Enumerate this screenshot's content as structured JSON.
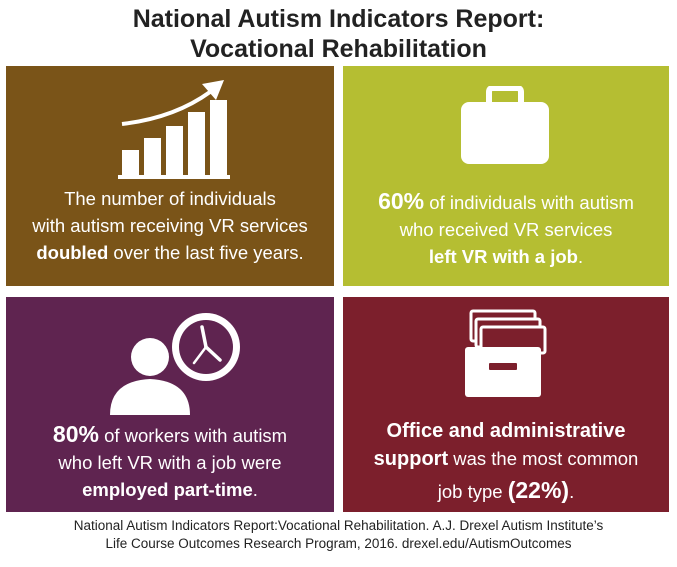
{
  "title": {
    "line1": "National Autism Indicators Report:",
    "line2": "Vocational Rehabilitation"
  },
  "panels": [
    {
      "icon": "bar-chart-growth-icon",
      "color": "#7a5418",
      "lines": [
        "The number of individuals",
        "with autism receiving VR services",
        {
          "bold": "doubled",
          "rest": " over the last five years."
        }
      ]
    },
    {
      "icon": "briefcase-icon",
      "color": "#b5be32",
      "stat": "60%",
      "line1_rest": " of individuals with autism",
      "line2": "who received VR services",
      "line3_bold": "left VR with a job",
      "line3_rest": "."
    },
    {
      "icon": "person-with-clock-icon",
      "color": "#5f2450",
      "stat": "80%",
      "line1_rest": " of workers with autism",
      "line2": "who left VR with a job were",
      "line3_bold": "employed part-time",
      "line3_rest": "."
    },
    {
      "icon": "file-cabinet-icon",
      "color": "#7c1f2c",
      "line1_bold": "Office and administrative",
      "line2_bold": "support",
      "line2_rest": " was the most common",
      "line3_pre": "job type ",
      "line3_stat": "(22%)",
      "line3_rest": "."
    }
  ],
  "footer": {
    "line1": "National Autism Indicators Report:Vocational Rehabilitation. A.J. Drexel Autism Institute’s",
    "line2": "Life Course Outcomes Research Program, 2016. drexel.edu/AutismOutcomes"
  }
}
